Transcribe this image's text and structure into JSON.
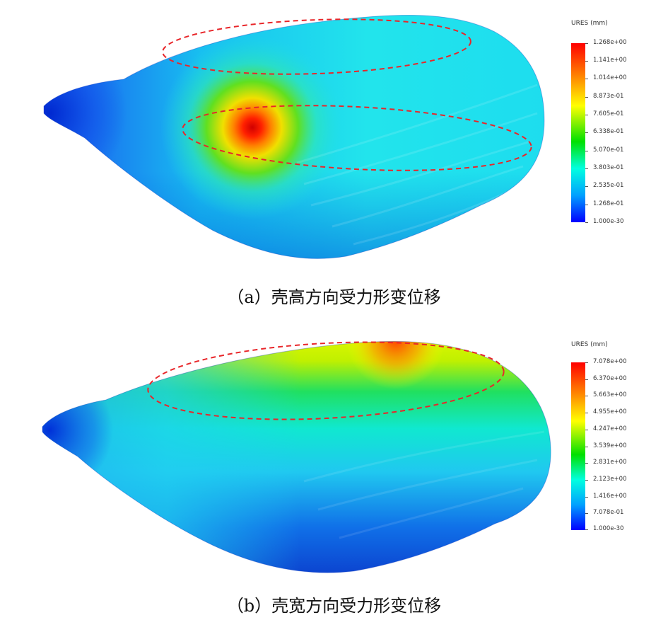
{
  "panel_a": {
    "caption": "（a）壳高方向受力形变位移",
    "legend": {
      "title": "URES (mm)",
      "ticks": [
        "1.268e+00",
        "1.141e+00",
        "1.014e+00",
        "8.873e-01",
        "7.605e-01",
        "6.338e-01",
        "5.070e-01",
        "3.803e-01",
        "2.535e-01",
        "1.268e-01",
        "1.000e-30"
      ]
    },
    "highlight_color": "#e8262a"
  },
  "panel_b": {
    "caption": "（b）壳宽方向受力形变位移",
    "legend": {
      "title": "URES (mm)",
      "ticks": [
        "7.078e+00",
        "6.370e+00",
        "5.663e+00",
        "4.955e+00",
        "4.247e+00",
        "3.539e+00",
        "2.831e+00",
        "2.123e+00",
        "1.416e+00",
        "7.078e-01",
        "1.000e-30"
      ]
    },
    "highlight_color": "#e8262a"
  },
  "colormap": [
    "#ff0000",
    "#ff8000",
    "#ffff00",
    "#00e000",
    "#00ffff",
    "#0000ff"
  ]
}
